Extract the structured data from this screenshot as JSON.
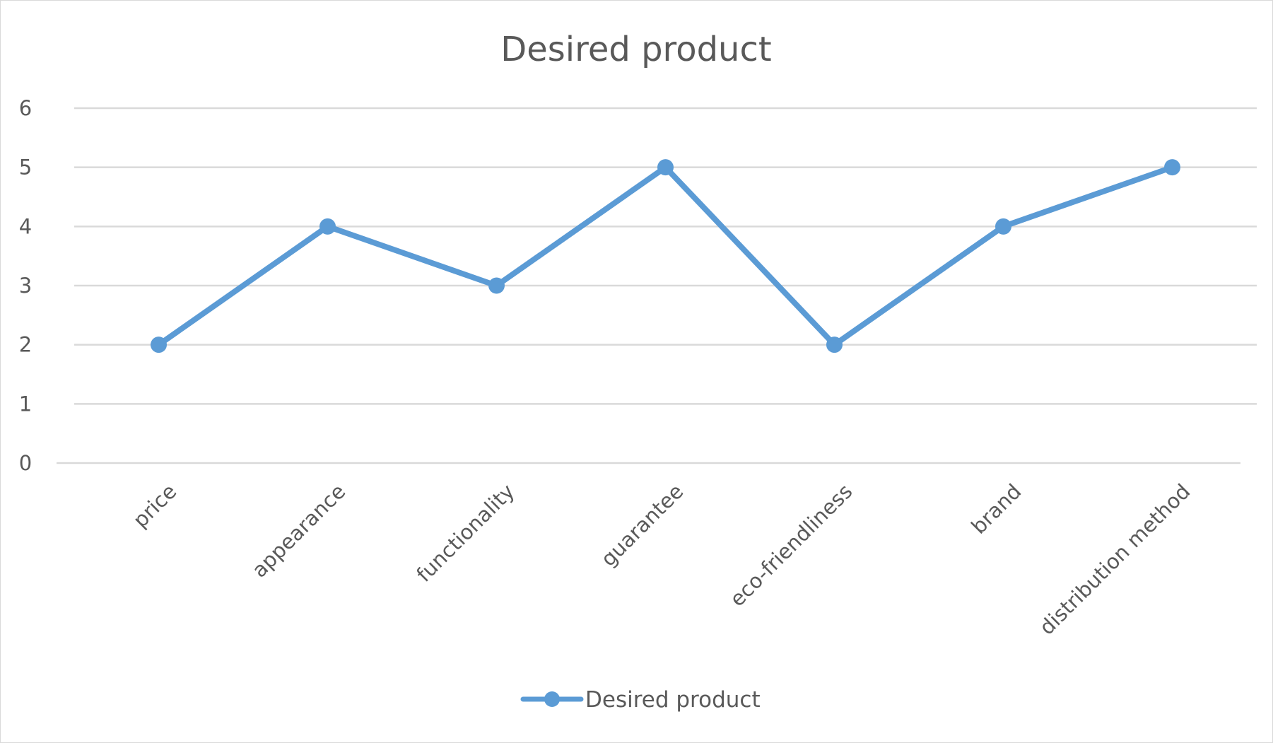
{
  "chart_data": {
    "type": "line",
    "title": "Desired product",
    "categories": [
      "price",
      "appearance",
      "functionality",
      "guarantee",
      "eco-friendliness",
      "brand",
      "distribution method"
    ],
    "series": [
      {
        "name": "Desired product",
        "values": [
          2,
          4,
          3,
          5,
          2,
          4,
          5
        ],
        "color": "#5b9bd5"
      }
    ],
    "ylim": [
      0,
      6
    ],
    "yticks": [
      "0",
      "1",
      "2",
      "3",
      "4",
      "5",
      "6"
    ],
    "grid": true,
    "legend": "bottom"
  }
}
